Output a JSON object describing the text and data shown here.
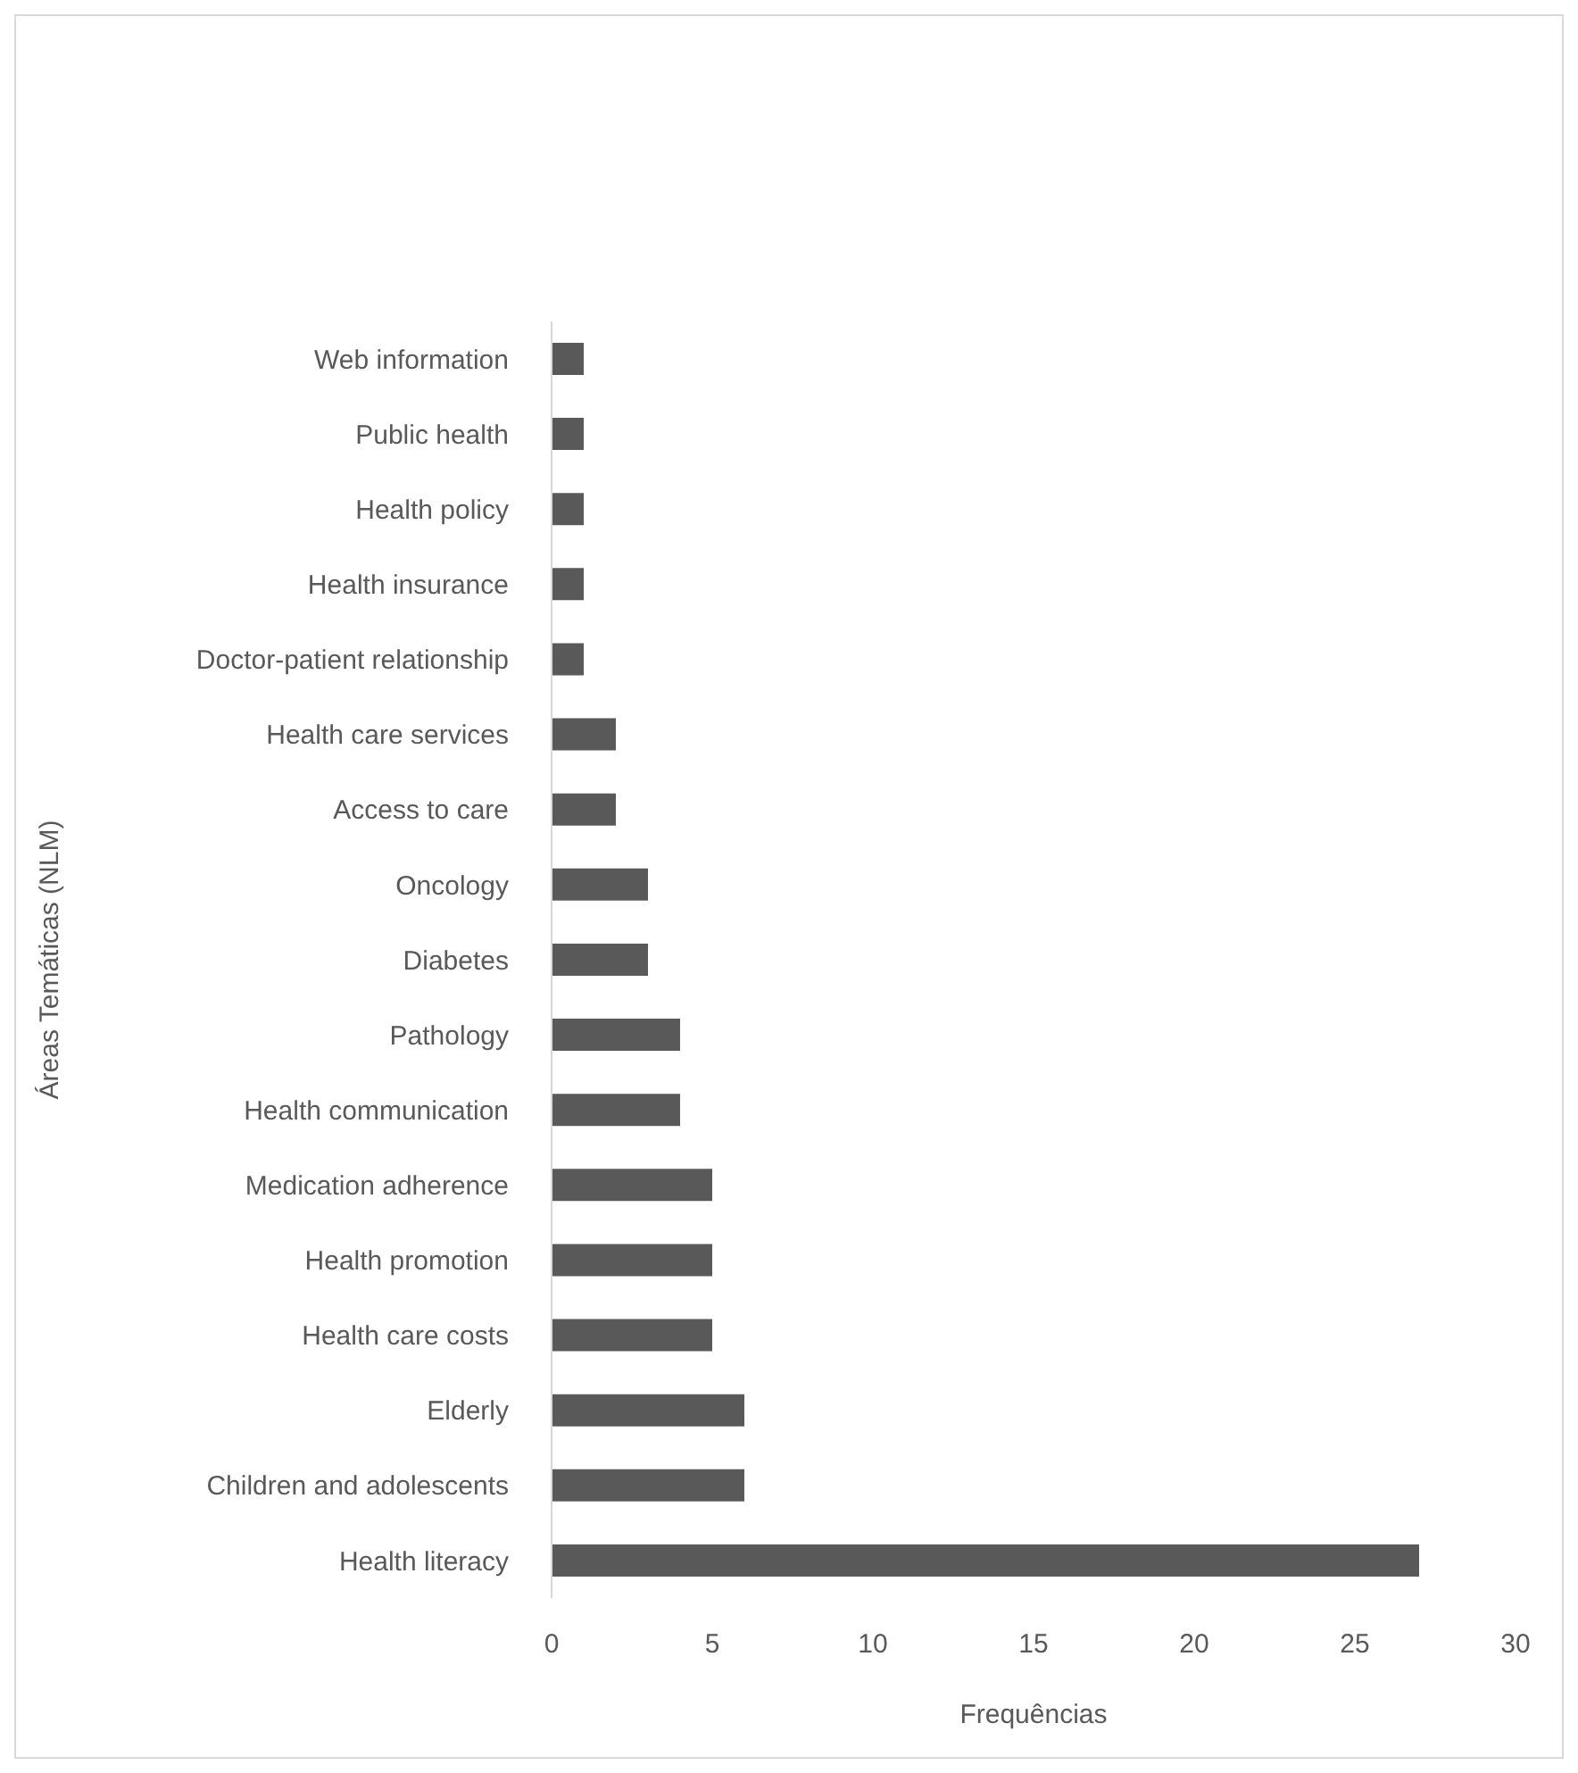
{
  "chart_data": {
    "type": "bar",
    "orientation": "horizontal",
    "xlabel": "Frequências",
    "ylabel": "Áreas Temáticas (NLM)",
    "categories": [
      "Web information",
      "Public health",
      "Health policy",
      "Health insurance",
      "Doctor-patient relationship",
      "Health care services",
      "Access to care",
      "Oncology",
      "Diabetes",
      "Pathology",
      "Health communication",
      "Medication adherence",
      "Health promotion",
      "Health care costs",
      "Elderly",
      "Children and adolescents",
      "Health literacy"
    ],
    "values": [
      1,
      1,
      1,
      1,
      1,
      2,
      2,
      3,
      3,
      4,
      4,
      5,
      5,
      5,
      6,
      6,
      27
    ],
    "color": "#595959",
    "xlim": [
      0,
      30
    ],
    "xticks": [
      0,
      5,
      10,
      15,
      20,
      25,
      30
    ],
    "grid": false,
    "legend": false
  }
}
